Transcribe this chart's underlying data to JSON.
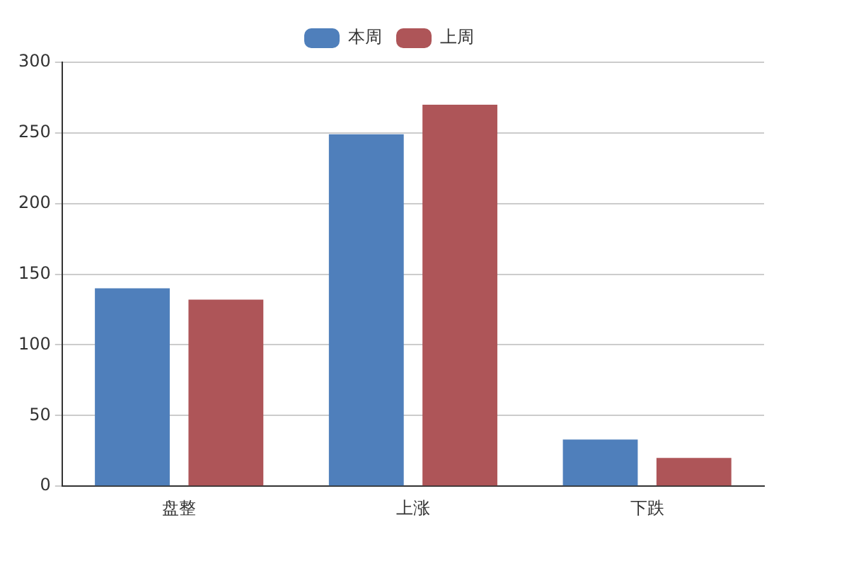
{
  "chart_data": {
    "type": "bar",
    "categories": [
      "盘整",
      "上涨",
      "下跌"
    ],
    "series": [
      {
        "name": "本周",
        "color": "#4f7fbb",
        "values": [
          140,
          249,
          33
        ]
      },
      {
        "name": "上周",
        "color": "#ae5558",
        "values": [
          132,
          270,
          20
        ]
      }
    ],
    "ylim": [
      0,
      300
    ],
    "yticks": [
      0,
      50,
      100,
      150,
      200,
      250,
      300
    ],
    "grid": "y",
    "legend": "top"
  }
}
